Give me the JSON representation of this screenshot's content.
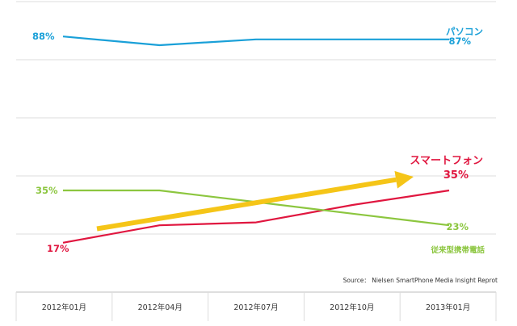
{
  "chart_data": {
    "type": "line",
    "categories": [
      "2012年01月",
      "2012年04月",
      "2012年07月",
      "2012年10月",
      "2013年01月"
    ],
    "ylim": [
      0,
      100
    ],
    "grid": true,
    "series": [
      {
        "name": "パソコン",
        "values": [
          88,
          85,
          87,
          87,
          87
        ],
        "color": "#1aa0d8",
        "start_label": "88%",
        "end_label": "87%"
      },
      {
        "name": "スマートフォン",
        "values": [
          17,
          23,
          24,
          30,
          35
        ],
        "color": "#e0163f",
        "start_label": "17%",
        "end_label": "35%"
      },
      {
        "name": "従来型携帯電話",
        "values": [
          35,
          35,
          31,
          27,
          23
        ],
        "color": "#8cc63f",
        "start_label": "35%",
        "end_label": "23%"
      }
    ],
    "trend_arrow_color": "#f5c518",
    "source": "Source：  Nielsen SmartPhone Media Insight Reprot"
  }
}
